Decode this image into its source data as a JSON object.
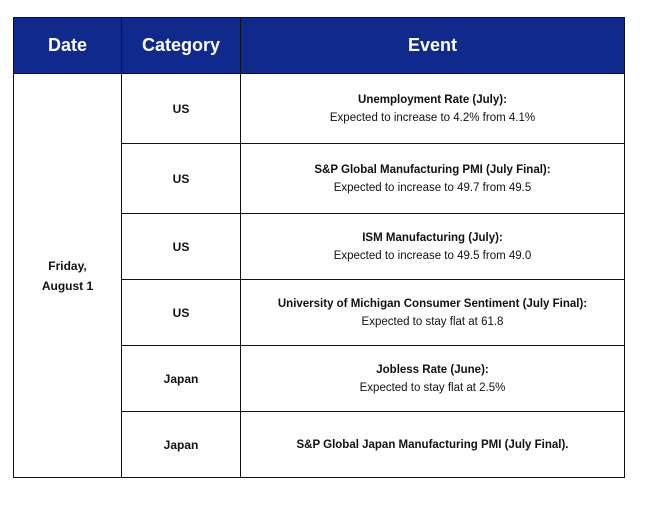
{
  "headers": {
    "date": "Date",
    "category": "Category",
    "event": "Event"
  },
  "date": {
    "line1": "Friday,",
    "line2": "August 1"
  },
  "rows": [
    {
      "category": "US",
      "title": "Unemployment Rate (July):",
      "desc": "Expected to increase to 4.2% from 4.1%"
    },
    {
      "category": "US",
      "title": "S&P Global Manufacturing PMI (July Final):",
      "desc": "Expected to increase to 49.7 from 49.5"
    },
    {
      "category": "US",
      "title": "ISM Manufacturing (July):",
      "desc": "Expected to increase to 49.5 from 49.0"
    },
    {
      "category": "US",
      "title": "University of Michigan Consumer Sentiment (July Final):",
      "desc": "Expected to stay flat at 61.8"
    },
    {
      "category": "Japan",
      "title": "Jobless Rate (June):",
      "desc": "Expected to stay flat at 2.5%"
    },
    {
      "category": "Japan",
      "title": "S&P Global Japan Manufacturing PMI (July Final).",
      "desc": ""
    }
  ],
  "colors": {
    "header_background": "#0f2a8c",
    "header_text": "#ffffff",
    "border": "#111111"
  }
}
